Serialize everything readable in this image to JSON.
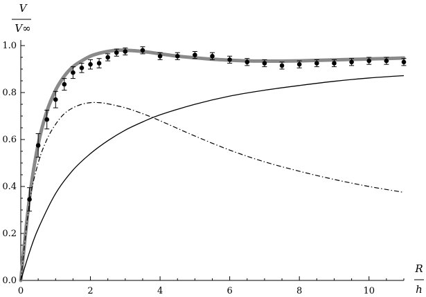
{
  "chart_data": {
    "type": "line",
    "ylabel": {
      "numerator": "V",
      "denominator": "V∞"
    },
    "xlabel": {
      "numerator": "R",
      "denominator": "h"
    },
    "xlim": [
      0,
      11
    ],
    "ylim": [
      0,
      1.0
    ],
    "x_ticks": [
      0,
      2,
      4,
      6,
      8,
      10
    ],
    "x_tick_labels": [
      "0",
      "2",
      "4",
      "6",
      "8",
      "10"
    ],
    "y_ticks": [
      0,
      0.2,
      0.4,
      0.6,
      0.8,
      1.0
    ],
    "y_tick_labels": [
      "0.0",
      "0.2",
      "0.4",
      "0.6",
      "0.8",
      "1.0"
    ],
    "grid": false,
    "legend": "none",
    "series": [
      {
        "style": "thick-gray-line",
        "color": "#8a8a8a",
        "x": [
          0,
          0.25,
          0.5,
          0.75,
          1.0,
          1.25,
          1.5,
          1.75,
          2.0,
          2.25,
          2.5,
          2.75,
          3.0,
          3.5,
          4.0,
          4.5,
          5.0,
          5.5,
          6.0,
          6.5,
          7.0,
          7.5,
          8.0,
          8.5,
          9.0,
          9.5,
          10.0,
          10.5,
          11.0
        ],
        "y": [
          0,
          0.35,
          0.58,
          0.72,
          0.81,
          0.87,
          0.91,
          0.935,
          0.955,
          0.967,
          0.975,
          0.98,
          0.98,
          0.975,
          0.965,
          0.955,
          0.948,
          0.942,
          0.938,
          0.935,
          0.934,
          0.934,
          0.935,
          0.937,
          0.939,
          0.941,
          0.943,
          0.945,
          0.947
        ]
      },
      {
        "style": "solid-black-line",
        "color": "#000000",
        "x": [
          0,
          0.25,
          0.5,
          1.0,
          1.5,
          2.0,
          2.5,
          3.0,
          3.5,
          4.0,
          5.0,
          6.0,
          7.0,
          8.0,
          9.0,
          10.0,
          11.0
        ],
        "y": [
          0,
          0.12,
          0.22,
          0.37,
          0.47,
          0.54,
          0.595,
          0.64,
          0.675,
          0.705,
          0.75,
          0.785,
          0.81,
          0.83,
          0.848,
          0.862,
          0.872
        ]
      },
      {
        "style": "dash-dot-black-line",
        "color": "#000000",
        "x": [
          0,
          0.25,
          0.5,
          0.75,
          1.0,
          1.25,
          1.5,
          1.75,
          2.0,
          2.25,
          2.5,
          3.0,
          3.5,
          4.0,
          5.0,
          6.0,
          7.0,
          8.0,
          9.0,
          10.0,
          11.0
        ],
        "y": [
          0,
          0.33,
          0.5,
          0.6,
          0.665,
          0.71,
          0.735,
          0.75,
          0.757,
          0.757,
          0.752,
          0.735,
          0.71,
          0.68,
          0.615,
          0.555,
          0.505,
          0.465,
          0.43,
          0.4,
          0.375
        ]
      },
      {
        "style": "points-with-error-bars",
        "color": "#000000",
        "x": [
          0.25,
          0.5,
          0.75,
          1.0,
          1.25,
          1.5,
          1.75,
          2.0,
          2.25,
          2.5,
          2.75,
          3.0,
          3.5,
          4.0,
          4.5,
          5.0,
          5.5,
          6.0,
          6.5,
          7.0,
          7.5,
          8.0,
          8.5,
          9.0,
          9.5,
          10.0,
          10.5,
          11.0
        ],
        "y": [
          0.345,
          0.575,
          0.685,
          0.77,
          0.835,
          0.885,
          0.905,
          0.92,
          0.925,
          0.95,
          0.97,
          0.975,
          0.98,
          0.955,
          0.955,
          0.96,
          0.955,
          0.94,
          0.93,
          0.925,
          0.915,
          0.92,
          0.925,
          0.925,
          0.93,
          0.935,
          0.935,
          0.93
        ],
        "err": [
          0.05,
          0.05,
          0.04,
          0.035,
          0.025,
          0.025,
          0.02,
          0.02,
          0.02,
          0.015,
          0.015,
          0.015,
          0.015,
          0.015,
          0.015,
          0.015,
          0.015,
          0.015,
          0.015,
          0.015,
          0.015,
          0.015,
          0.015,
          0.015,
          0.015,
          0.015,
          0.015,
          0.015
        ]
      }
    ]
  }
}
